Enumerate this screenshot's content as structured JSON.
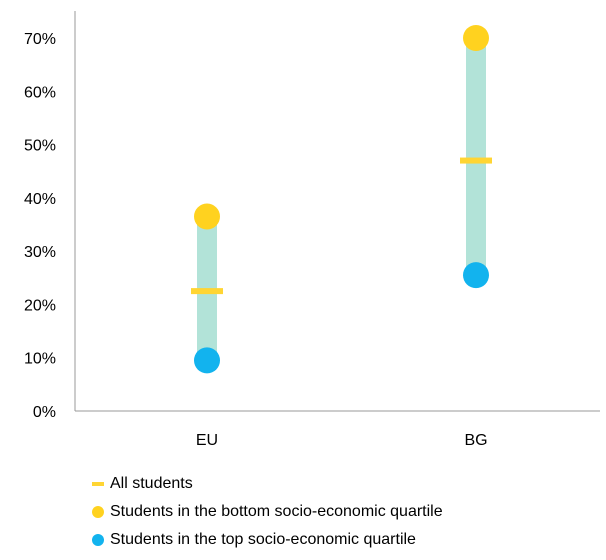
{
  "chart_data": {
    "type": "range-dot",
    "categories": [
      "EU",
      "BG"
    ],
    "series": [
      {
        "name": "All students",
        "values": [
          22.5,
          47
        ],
        "marker": "dash",
        "color": "#FFD533"
      },
      {
        "name": "Students in the bottom socio-economic quartile",
        "values": [
          36.5,
          70
        ],
        "marker": "dot",
        "color": "#FFD21F"
      },
      {
        "name": "Students in the top socio-economic quartile",
        "values": [
          9.5,
          25.5
        ],
        "marker": "dot",
        "color": "#12B3EE"
      }
    ],
    "range_bar_color": "#B2E3D8",
    "ylim": [
      0,
      70
    ],
    "yticks": [
      0,
      10,
      20,
      30,
      40,
      50,
      60,
      70
    ],
    "ytick_labels": [
      "0%",
      "10%",
      "20%",
      "30%",
      "40%",
      "50%",
      "60%",
      "70%"
    ],
    "title": "",
    "xlabel": "",
    "ylabel": "",
    "legend_position": "bottom-left"
  }
}
